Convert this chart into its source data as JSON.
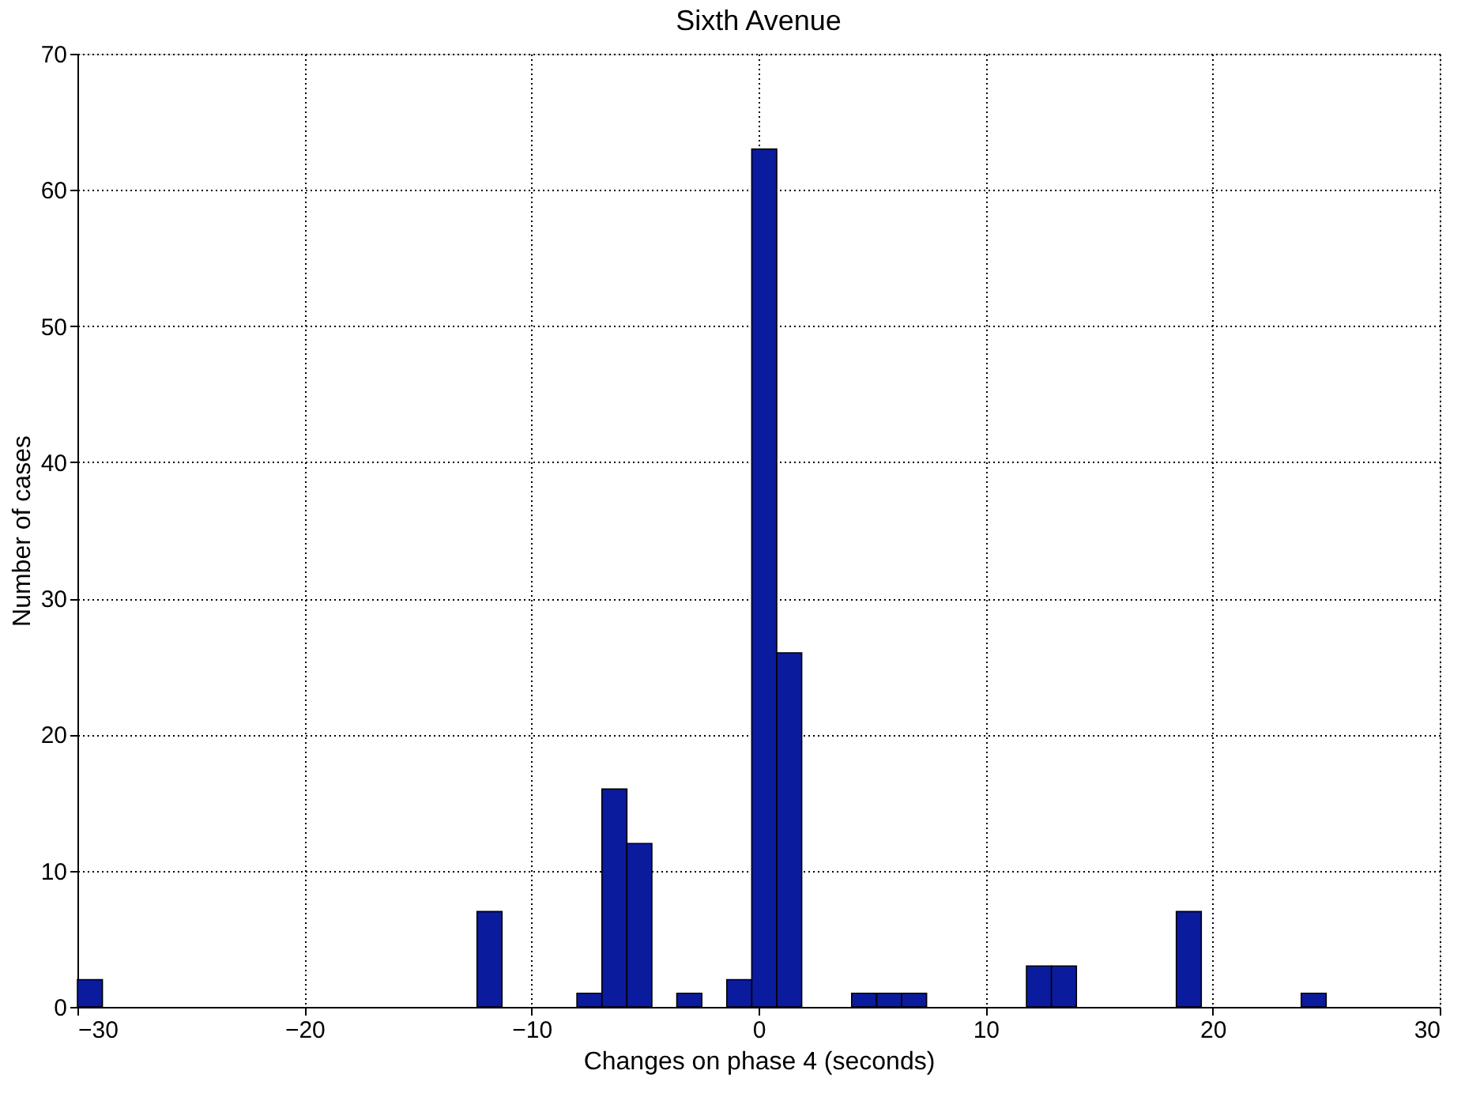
{
  "chart_data": {
    "type": "histogram",
    "title": "Sixth Avenue",
    "xlabel": "Changes on phase 4 (seconds)",
    "ylabel": "Number of cases",
    "bins": [
      -30,
      -28.9,
      -27.8,
      -26.7,
      -25.6,
      -24.5,
      -23.4,
      -22.3,
      -21.2,
      -20.1,
      -19,
      -17.9,
      -16.8,
      -15.7,
      -14.6,
      -13.5,
      -12.4,
      -11.3,
      -10.2,
      -9.1,
      -8,
      -6.9,
      -5.8,
      -4.7,
      -3.6,
      -2.5,
      -1.4,
      -0.3,
      0.8,
      1.9,
      3,
      4.1,
      5.2,
      6.3,
      7.4,
      8.5,
      9.6,
      10.7,
      11.8,
      12.9,
      14,
      15.1,
      16.2,
      17.3,
      18.4,
      19.5,
      20.6,
      21.7,
      22.8,
      23.9,
      25
    ],
    "values": [
      2,
      0,
      0,
      0,
      0,
      0,
      0,
      0,
      0,
      0,
      0,
      0,
      0,
      0,
      0,
      0,
      7,
      0,
      0,
      0,
      1,
      16,
      12,
      0,
      1,
      0,
      2,
      63,
      26,
      0,
      0,
      1,
      1,
      1,
      0,
      0,
      0,
      0,
      3,
      3,
      0,
      0,
      0,
      0,
      7,
      0,
      0,
      0,
      0,
      1
    ],
    "color": "#0b1b9e",
    "xlim": [
      -30,
      30
    ],
    "xticks": [
      -30,
      -20,
      -10,
      0,
      10,
      20,
      30
    ],
    "ylim": [
      0,
      70
    ],
    "yticks": [
      0,
      10,
      20,
      30,
      40,
      50,
      60,
      70
    ],
    "grid": true
  }
}
